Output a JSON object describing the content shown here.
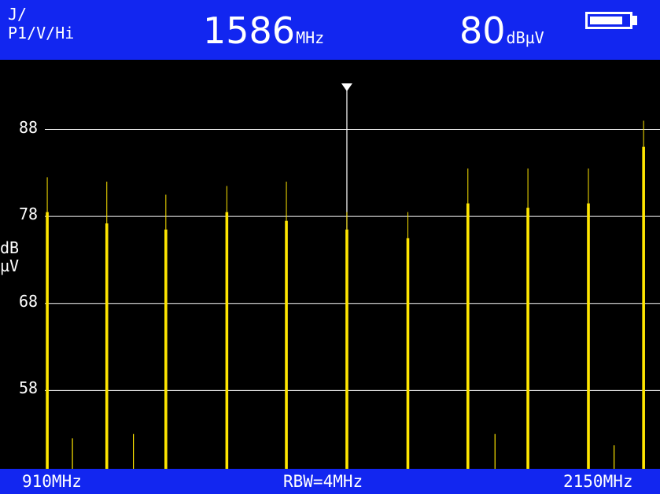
{
  "header": {
    "source_line1": "J/",
    "source_line2": "P1/V/Hi",
    "frequency_value": "1586",
    "frequency_unit": "MHz",
    "level_value": "80",
    "level_unit": "dBµV",
    "battery_level": 0.85
  },
  "footer": {
    "start_freq": "910MHz",
    "rbw": "RBW=4MHz",
    "stop_freq": "2150MHz"
  },
  "colors": {
    "bar_blue": "#1226f0",
    "trace_yellow": "#ffe600",
    "background": "#000000",
    "gridline": "#ffffff"
  },
  "chart_data": {
    "type": "bar",
    "y_unit_line1": "dB",
    "y_unit_line2": "µV",
    "y_ticks": [
      88,
      78,
      68,
      58
    ],
    "ylim": [
      49,
      96
    ],
    "xlim": [
      910,
      2150
    ],
    "marker_freq": 1586,
    "grid": true,
    "carriers": [
      {
        "freq": 967,
        "level": 78.5,
        "peak": 82.5
      },
      {
        "freq": 1090,
        "level": 77.2,
        "peak": 82.0
      },
      {
        "freq": 1212,
        "level": 76.5,
        "peak": 80.5
      },
      {
        "freq": 1338,
        "level": 78.5,
        "peak": 81.5
      },
      {
        "freq": 1461,
        "level": 77.5,
        "peak": 82.0
      },
      {
        "freq": 1586,
        "level": 76.5,
        "peak": 78.5
      },
      {
        "freq": 1712,
        "level": 75.5,
        "peak": 78.5
      },
      {
        "freq": 1836,
        "level": 79.5,
        "peak": 83.5
      },
      {
        "freq": 1960,
        "level": 79.0,
        "peak": 83.5
      },
      {
        "freq": 2085,
        "level": 79.5,
        "peak": 83.5
      }
    ],
    "spurs": [
      {
        "freq": 1019,
        "peak": 52.5
      },
      {
        "freq": 1145,
        "peak": 53.0
      },
      {
        "freq": 1892,
        "peak": 53.0
      },
      {
        "freq": 2138,
        "peak": 51.7
      }
    ],
    "final_carrier": {
      "freq": 2199,
      "level": 86.0,
      "peak": 89.0
    }
  }
}
